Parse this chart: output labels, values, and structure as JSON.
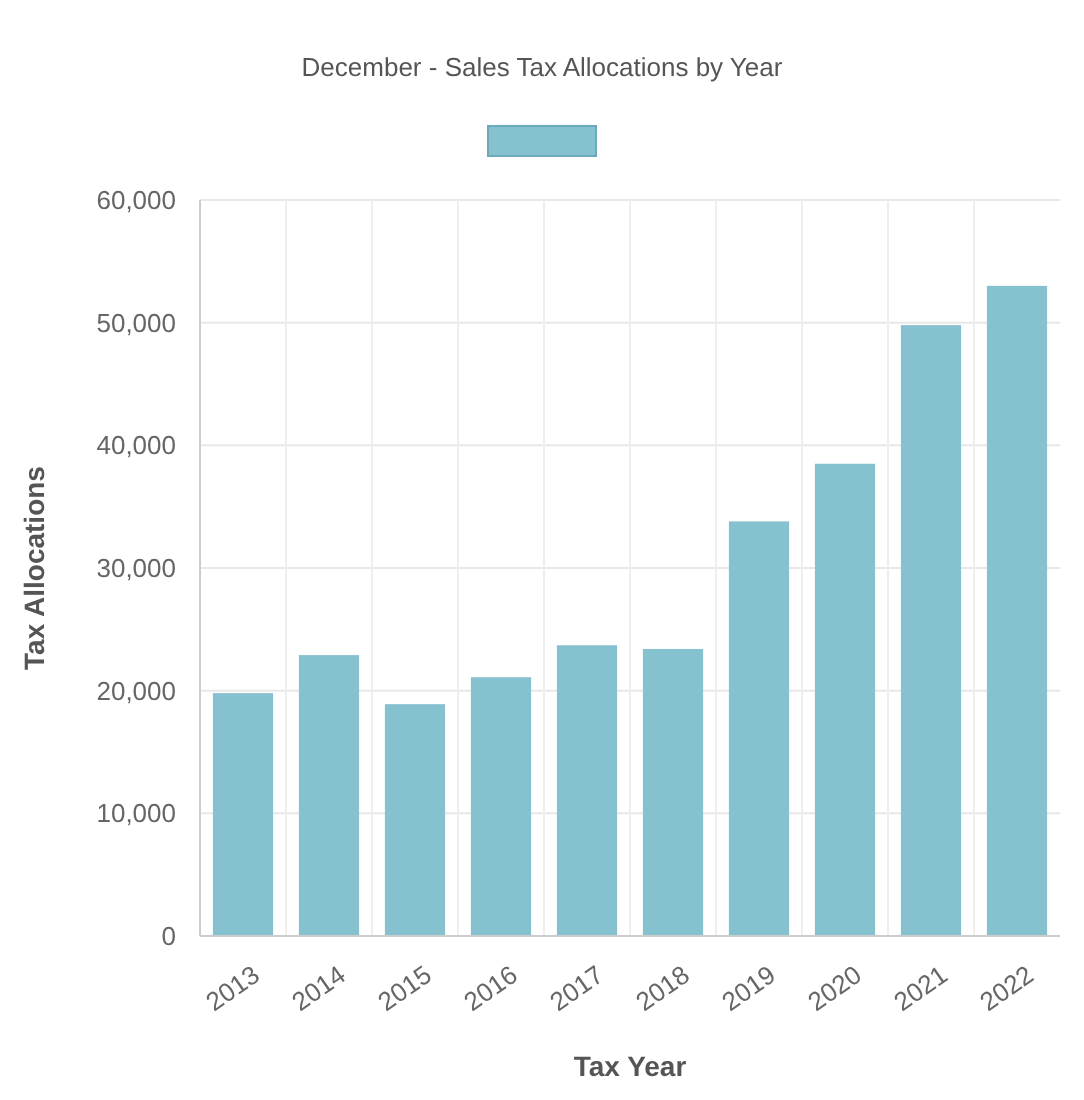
{
  "chart_data": {
    "type": "bar",
    "title": "December - Sales Tax Allocations by Year",
    "xlabel": "Tax Year",
    "ylabel": "Tax Allocations",
    "categories": [
      "2013",
      "2014",
      "2015",
      "2016",
      "2017",
      "2018",
      "2019",
      "2020",
      "2021",
      "2022"
    ],
    "series": [
      {
        "color": "#86c1d0",
        "values": [
          19800,
          22900,
          18900,
          21100,
          23700,
          23400,
          33800,
          38500,
          49800,
          53000
        ]
      }
    ],
    "ylim": [
      0,
      60000
    ],
    "yticks": [
      {
        "value": 0,
        "label": "0"
      },
      {
        "value": 10000,
        "label": "10,000"
      },
      {
        "value": 20000,
        "label": "20,000"
      },
      {
        "value": 30000,
        "label": "30,000"
      },
      {
        "value": 40000,
        "label": "40,000"
      },
      {
        "value": 50000,
        "label": "50,000"
      },
      {
        "value": 60000,
        "label": "60,000"
      }
    ],
    "grid": true
  }
}
